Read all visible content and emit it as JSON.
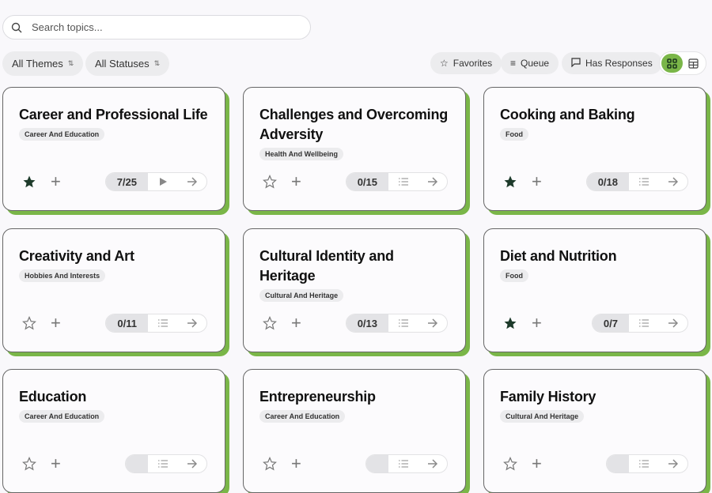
{
  "search": {
    "placeholder": "Search topics..."
  },
  "filters": {
    "themes": "All Themes",
    "statuses": "All Statuses"
  },
  "toolbar": {
    "favorites": "Favorites",
    "queue": "Queue",
    "has_responses": "Has Responses",
    "accent": "#7ab648"
  },
  "cards": [
    {
      "title": "Career and Professional Life",
      "tag": "Career And Education",
      "favorite": true,
      "progress": "7/25",
      "started": true
    },
    {
      "title": "Challenges and Overcoming Adversity",
      "tag": "Health And Wellbeing",
      "favorite": false,
      "progress": "0/15",
      "started": false
    },
    {
      "title": "Cooking and Baking",
      "tag": "Food",
      "favorite": true,
      "progress": "0/18",
      "started": false
    },
    {
      "title": "Creativity and Art",
      "tag": "Hobbies And Interests",
      "favorite": false,
      "progress": "0/11",
      "started": false
    },
    {
      "title": "Cultural Identity and Heritage",
      "tag": "Cultural And Heritage",
      "favorite": false,
      "progress": "0/13",
      "started": false
    },
    {
      "title": "Diet and Nutrition",
      "tag": "Food",
      "favorite": true,
      "progress": "0/7",
      "started": false
    },
    {
      "title": "Education",
      "tag": "Career And Education",
      "favorite": false,
      "progress": "",
      "started": false
    },
    {
      "title": "Entrepreneurship",
      "tag": "Career And Education",
      "favorite": false,
      "progress": "",
      "started": false
    },
    {
      "title": "Family History",
      "tag": "Cultural And Heritage",
      "favorite": false,
      "progress": "",
      "started": false
    }
  ]
}
